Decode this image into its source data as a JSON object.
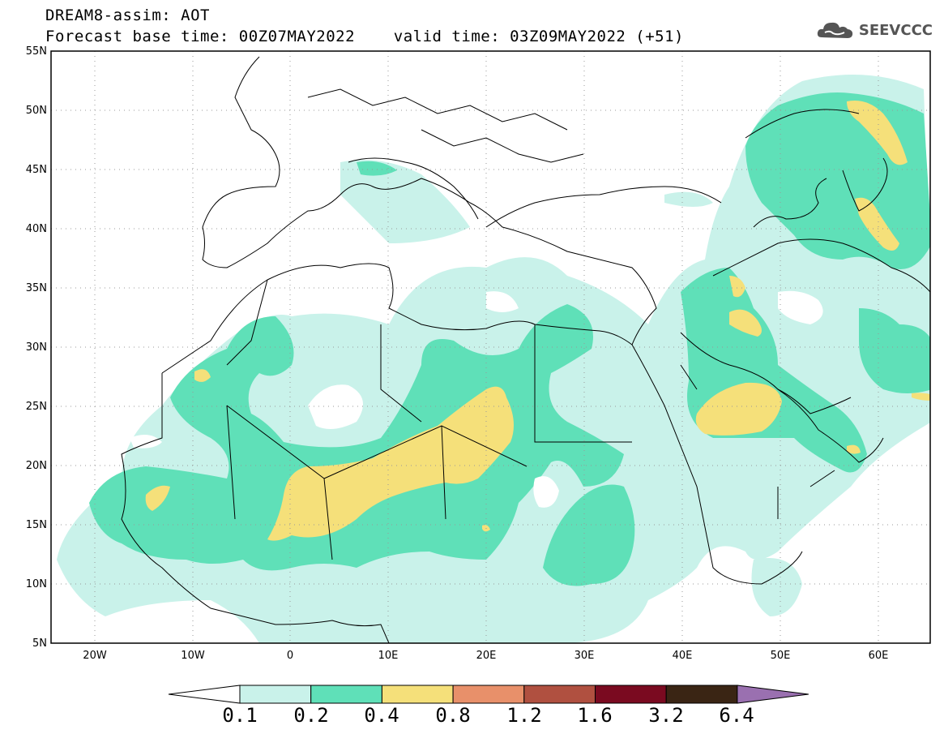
{
  "header": {
    "line1": "DREAM8-assim: AOT",
    "line2": "Forecast base time: 00Z07MAY2022    valid time: 03Z09MAY2022 (+51)"
  },
  "logo": {
    "text": "SEEVCCC",
    "icon": "cloud-icon"
  },
  "map": {
    "lat_labels": [
      "55N",
      "50N",
      "45N",
      "40N",
      "35N",
      "30N",
      "25N",
      "20N",
      "15N",
      "10N",
      "5N"
    ],
    "lon_labels": [
      "20W",
      "10W",
      "0",
      "10E",
      "20E",
      "30E",
      "40E",
      "50E",
      "60E"
    ],
    "lat_range": [
      5,
      55
    ],
    "lon_range": [
      -25,
      65
    ],
    "grid": "dotted"
  },
  "colorbar": {
    "labels": [
      "0.1",
      "0.2",
      "0.4",
      "0.8",
      "1.2",
      "1.6",
      "3.2",
      "6.4"
    ],
    "colors": [
      "#c9f2ea",
      "#5fe0b8",
      "#f5e07a",
      "#e8906a",
      "#b05040",
      "#7a0a20",
      "#3a2514"
    ],
    "under_color": "#ffffff",
    "over_color": "#9a70b0"
  }
}
